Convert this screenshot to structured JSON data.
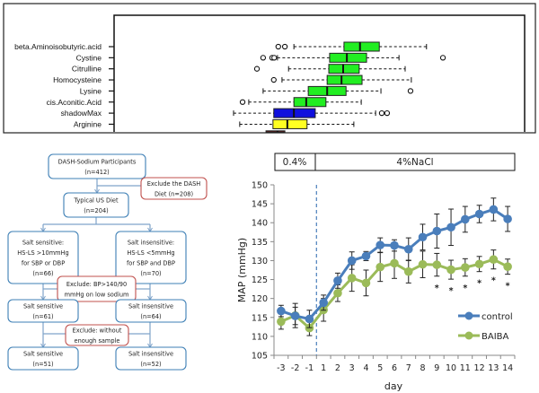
{
  "chart_data": [
    {
      "type": "boxplot",
      "title": "",
      "orientation": "horizontal",
      "xlabel": "",
      "ylabel": "",
      "xlim": [
        0,
        100
      ],
      "value_scale_note": "relative importance (no axis ticks visible)",
      "categories": [
        "beta.Aminoisobutyric.acid",
        "Cystine",
        "Citrulline",
        "Homocysteine",
        "Lysine",
        "cis.Aconitic.Acid",
        "shadowMax",
        "Arginine",
        ""
      ],
      "boxes": [
        {
          "label": "beta.Aminoisobutyric.acid",
          "color": "#22ee22",
          "whisker_low": 43.8,
          "q1": 56.0,
          "median": 59.9,
          "q3": 64.6,
          "whisker_high": 76.1,
          "outliers": [
            40.0,
            41.6
          ]
        },
        {
          "label": "Cystine",
          "color": "#22ee22",
          "whisker_low": 39.8,
          "q1": 52.5,
          "median": 56.7,
          "q3": 61.5,
          "whisker_high": 69.4,
          "outliers": [
            36.3,
            38.5,
            39.0,
            80.1
          ]
        },
        {
          "label": "Citrulline",
          "color": "#22ee22",
          "whisker_low": 42.5,
          "q1": 52.3,
          "median": 55.8,
          "q3": 59.7,
          "whisker_high": 70.9,
          "outliers": [
            34.8
          ]
        },
        {
          "label": "Homocysteine",
          "color": "#22ee22",
          "whisker_low": 40.9,
          "q1": 51.9,
          "median": 55.4,
          "q3": 60.4,
          "whisker_high": 72.4,
          "outliers": [
            38.9
          ]
        },
        {
          "label": "Lysine",
          "color": "#22ee22",
          "whisker_low": 36.3,
          "q1": 47.3,
          "median": 51.9,
          "q3": 56.5,
          "whisker_high": 65.0,
          "outliers": [
            72.2
          ]
        },
        {
          "label": "cis.Aconitic.Acid",
          "color": "#22ee22",
          "whisker_low": 32.8,
          "q1": 43.8,
          "median": 46.8,
          "q3": 51.6,
          "whisker_high": 60.2,
          "outliers": [
            31.3
          ]
        },
        {
          "label": "shadowMax",
          "color": "#1010dd",
          "whisker_low": 29.1,
          "q1": 38.9,
          "median": 43.8,
          "q3": 49.0,
          "whisker_high": 63.7,
          "outliers": [
            65.2,
            66.5
          ]
        },
        {
          "label": "Arginine",
          "color": "#ffff22",
          "whisker_low": 30.6,
          "q1": 38.7,
          "median": 42.2,
          "q3": 47.0,
          "whisker_high": 58.4,
          "outliers": []
        },
        {
          "label": "",
          "color": "#cc1111",
          "whisker_low": null,
          "q1": 37.0,
          "median": 39.8,
          "q3": 41.6,
          "whisker_high": null,
          "outliers": [],
          "partially_visible": true
        }
      ]
    },
    {
      "type": "flowchart",
      "nodes": [
        {
          "id": "dash",
          "lines": [
            "DASH-Sodium Participants",
            "(n=412)"
          ],
          "kind": "main"
        },
        {
          "id": "excl1",
          "lines": [
            "Exclude the DASH",
            "Diet (n=208)"
          ],
          "kind": "exclude"
        },
        {
          "id": "typical",
          "lines": [
            "Typical US Diet",
            "(n=204)"
          ],
          "kind": "main"
        },
        {
          "id": "ss1",
          "lines": [
            "Salt sensitive:",
            "HS-LS >10mmHg",
            "for SBP or DBP",
            "(n=66)"
          ],
          "kind": "main"
        },
        {
          "id": "si1",
          "lines": [
            "Salt insensitive:",
            "HS-LS <5mmHg",
            "for SBP and DBP",
            "(n=70)"
          ],
          "kind": "main"
        },
        {
          "id": "excl2",
          "lines": [
            "Exclude: BP>140/90",
            "mmHg on low sodium"
          ],
          "kind": "exclude"
        },
        {
          "id": "ss2",
          "lines": [
            "Salt sensitive",
            "(n=61)"
          ],
          "kind": "main"
        },
        {
          "id": "si2",
          "lines": [
            "Salt insensitive",
            "(n=64)"
          ],
          "kind": "main"
        },
        {
          "id": "excl3",
          "lines": [
            "Exclude: without",
            "enough sample"
          ],
          "kind": "exclude"
        },
        {
          "id": "ss3",
          "lines": [
            "Salt sensitive",
            "(n=51)"
          ],
          "kind": "main"
        },
        {
          "id": "si3",
          "lines": [
            "Salt insensitive",
            "(n=52)"
          ],
          "kind": "main"
        }
      ],
      "colors": {
        "main_border": "#3d7fb5",
        "exclude_border": "#c0504d",
        "arrow": "#7fa3c9"
      }
    },
    {
      "type": "line",
      "title": "",
      "phase_labels": [
        "0.4%",
        "4%NaCl"
      ],
      "xlabel": "day",
      "ylabel": "MAP (mmHg)",
      "categories": [
        "-3",
        "-2",
        "-1",
        "1",
        "2",
        "3",
        "4",
        "5",
        "6",
        "7",
        "8",
        "9",
        "10",
        "11",
        "12",
        "13",
        "14"
      ],
      "ylim": [
        105,
        150
      ],
      "yticks": [
        105,
        110,
        115,
        120,
        125,
        130,
        135,
        140,
        145,
        150
      ],
      "divider_after": "-1",
      "legend_position": "bottom-right",
      "series": [
        {
          "name": "control",
          "color": "#4a7ebb",
          "values": [
            116.7,
            115.4,
            114.6,
            118.9,
            124.7,
            130.0,
            131.2,
            134.1,
            134.0,
            133.0,
            136.2,
            137.8,
            138.8,
            140.9,
            142.3,
            143.5,
            141.0
          ],
          "errors": [
            1.5,
            2.3,
            2.3,
            2.0,
            2.0,
            2.3,
            1.2,
            1.9,
            1.5,
            3.0,
            3.4,
            4.5,
            4.8,
            3.4,
            2.3,
            3.0,
            3.3
          ]
        },
        {
          "name": "BAIBA",
          "color": "#9bbb59",
          "values": [
            113.9,
            115.5,
            112.2,
            117.0,
            121.4,
            125.4,
            124.1,
            128.3,
            129.3,
            127.1,
            129.0,
            128.9,
            127.6,
            128.2,
            129.1,
            130.3,
            128.4
          ],
          "errors": [
            2.0,
            3.2,
            2.0,
            3.0,
            2.2,
            3.5,
            3.4,
            3.8,
            4.0,
            3.0,
            3.5,
            3.0,
            2.5,
            2.3,
            2.0,
            2.5,
            2.0
          ]
        }
      ],
      "significance_marker": "*",
      "significant_days": [
        "9",
        "10",
        "11",
        "12",
        "13",
        "14"
      ]
    }
  ]
}
